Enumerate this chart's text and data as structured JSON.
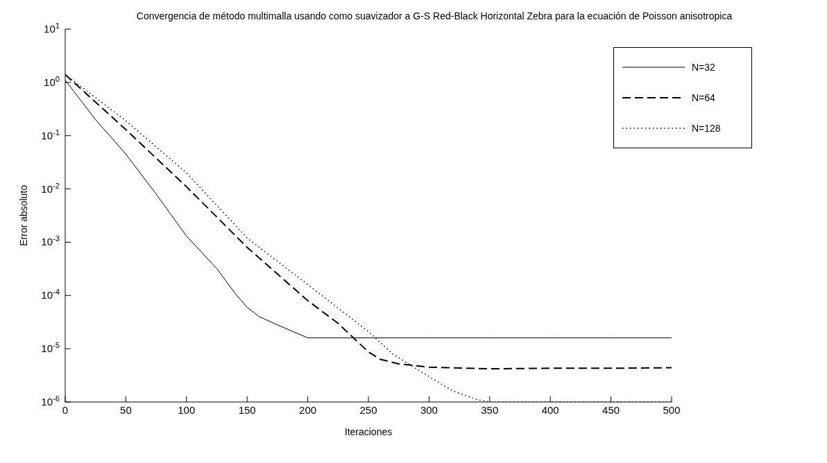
{
  "chart_data": {
    "type": "line",
    "title": "Convergencia de método multimalla usando como suavizador a G-S Red-Black Horizontal Zebra  para la ecuación de Poisson anisotropica",
    "xlabel": "Iteraciones",
    "ylabel": "Error absoluto",
    "log": "y",
    "xlim": [
      0,
      500
    ],
    "xticks": [
      0,
      50,
      100,
      150,
      200,
      250,
      300,
      350,
      400,
      450,
      500
    ],
    "ylim": [
      1e-06,
      10
    ],
    "yticks": [
      {
        "value": 1e-06,
        "label": "10$^{-6}$"
      },
      {
        "value": 1e-05,
        "label": "10$^{-5}$"
      },
      {
        "value": 0.0001,
        "label": "10$^{-4}$"
      },
      {
        "value": 0.001,
        "label": "10$^{-3}$"
      },
      {
        "value": 0.01,
        "label": "10$^{-2}$"
      },
      {
        "value": 0.1,
        "label": "10$^{-1}$"
      },
      {
        "value": 1,
        "label": "10$^{0}$"
      },
      {
        "value": 10,
        "label": "10$^{1}$"
      }
    ],
    "legend": "top right",
    "marker": "none",
    "series": [
      {
        "name": "N=32",
        "color": "#000000",
        "line_style": "solid",
        "x": [
          0,
          25,
          50,
          75,
          100,
          125,
          140,
          150,
          160,
          175,
          200,
          250,
          300,
          350,
          400,
          450,
          500
        ],
        "values": [
          1.1,
          0.2,
          0.045,
          0.008,
          0.0013,
          0.00032,
          0.00011,
          6e-05,
          4e-05,
          2.8e-05,
          1.6e-05,
          1.6e-05,
          1.6e-05,
          1.6e-05,
          1.6e-05,
          1.6e-05,
          1.6e-05
        ]
      },
      {
        "name": "N=64",
        "color": "#000000",
        "line_style": "dashed",
        "x": [
          0,
          50,
          100,
          150,
          200,
          225,
          250,
          260,
          275,
          300,
          350,
          400,
          450,
          500
        ],
        "values": [
          1.4,
          0.13,
          0.011,
          0.0008,
          8e-05,
          3e-05,
          8.7e-06,
          6.3e-06,
          5.2e-06,
          4.5e-06,
          4.2e-06,
          4.3e-06,
          4.3e-06,
          4.4e-06
        ]
      },
      {
        "name": "N=128",
        "color": "#000000",
        "line_style": "dotted",
        "x": [
          0,
          50,
          100,
          150,
          200,
          250,
          270,
          300,
          320,
          340,
          350,
          400,
          450,
          500
        ],
        "values": [
          1.4,
          0.19,
          0.02,
          0.0012,
          0.00016,
          2.1e-05,
          8e-06,
          3e-06,
          1.6e-06,
          1.1e-06,
          1e-06,
          1e-06,
          1e-06,
          1e-06
        ]
      }
    ]
  }
}
